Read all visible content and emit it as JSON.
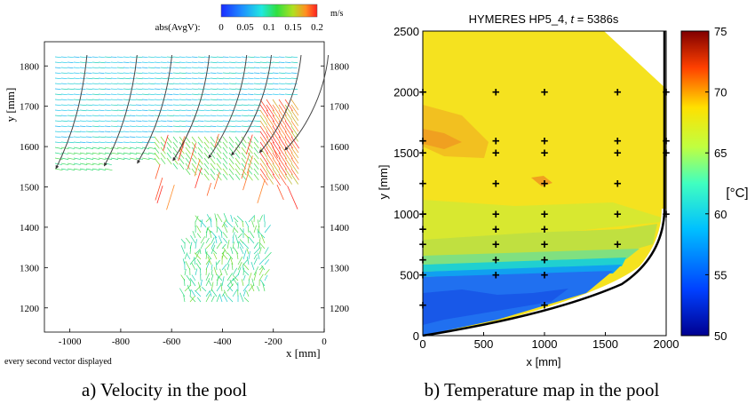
{
  "chart_data": [
    {
      "type": "scatter",
      "subtype": "velocity-vector-field",
      "title": "",
      "xlabel": "x [mm]",
      "ylabel": "y [mm]",
      "xlim": [
        -1100,
        0
      ],
      "ylim": [
        1140,
        1860
      ],
      "xticks": [
        -1000,
        -800,
        -600,
        -400,
        -200,
        0
      ],
      "yticks": [
        1200,
        1300,
        1400,
        1500,
        1600,
        1700,
        1800
      ],
      "colorbar": {
        "label": "abs(AvgV):",
        "unit": "m/s",
        "min": 0,
        "max": 0.2,
        "ticks": [
          "0",
          "0.05",
          "0.1",
          "0.15",
          "0.2"
        ]
      },
      "note": "every second vector displayed",
      "caption": "a) Velocity in the pool",
      "streamline_end_x": [
        -1020,
        -830,
        -700,
        -560,
        -420,
        -330,
        -220,
        -120
      ],
      "colors": {
        "low": "#3070ff",
        "mid": "#30d030",
        "high": "#ff2020"
      }
    },
    {
      "type": "heatmap",
      "subtype": "temperature-contour-map",
      "title": "HYMERES  HP5_4,   ",
      "title_time_symbol": "t",
      "title_time_value": " = 5386s",
      "xlabel": "x [mm]",
      "ylabel": "y [mm]",
      "xlim": [
        0,
        2000
      ],
      "ylim": [
        0,
        2500
      ],
      "xticks": [
        "0",
        "500",
        "1000",
        "1500",
        "2000"
      ],
      "yticks": [
        "0",
        "500",
        "1000",
        "1500",
        "2000",
        "2500"
      ],
      "colorbar": {
        "label": "[°C]",
        "min": 50,
        "max": 75,
        "ticks": [
          "50",
          "55",
          "60",
          "65",
          "70",
          "75"
        ]
      },
      "caption": "b) Temperature map in the pool",
      "measurement_points": [
        [
          0,
          250
        ],
        [
          0,
          500
        ],
        [
          0,
          625
        ],
        [
          0,
          750
        ],
        [
          0,
          875
        ],
        [
          0,
          1000
        ],
        [
          0,
          1250
        ],
        [
          0,
          1500
        ],
        [
          0,
          1600
        ],
        [
          0,
          2000
        ],
        [
          600,
          500
        ],
        [
          600,
          625
        ],
        [
          600,
          750
        ],
        [
          600,
          875
        ],
        [
          600,
          1000
        ],
        [
          600,
          1250
        ],
        [
          600,
          1500
        ],
        [
          600,
          1600
        ],
        [
          600,
          2000
        ],
        [
          1000,
          250
        ],
        [
          1000,
          500
        ],
        [
          1000,
          625
        ],
        [
          1000,
          750
        ],
        [
          1000,
          875
        ],
        [
          1000,
          1000
        ],
        [
          1000,
          1250
        ],
        [
          1000,
          1500
        ],
        [
          1000,
          1600
        ],
        [
          1000,
          2000
        ],
        [
          1600,
          750
        ],
        [
          1600,
          1000
        ],
        [
          1600,
          1250
        ],
        [
          1600,
          1500
        ],
        [
          1600,
          1600
        ],
        [
          1600,
          2000
        ],
        [
          2000,
          1000
        ],
        [
          2000,
          1500
        ],
        [
          2000,
          1600
        ],
        [
          2000,
          2000
        ]
      ]
    }
  ]
}
